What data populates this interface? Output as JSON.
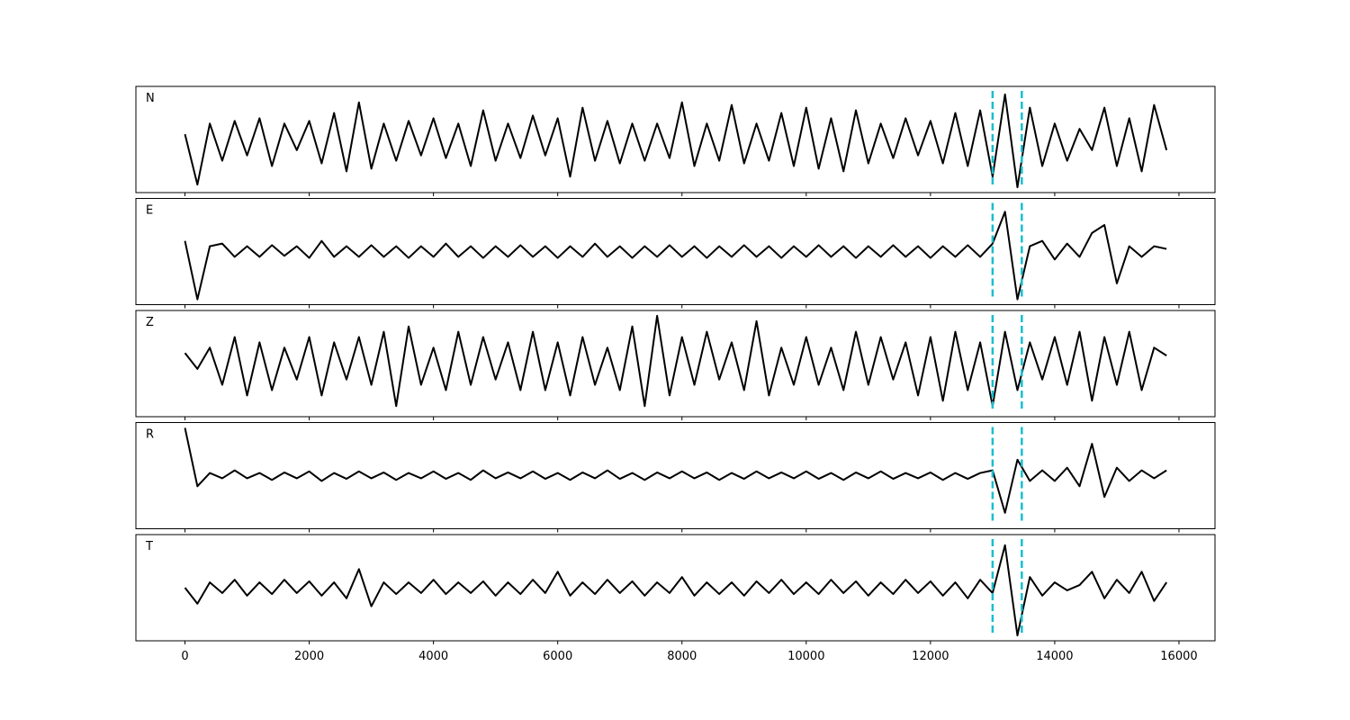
{
  "chart_data": {
    "type": "line",
    "layout": "stacked",
    "x": [
      0,
      200,
      400,
      600,
      800,
      1000,
      1200,
      1400,
      1600,
      1800,
      2000,
      2200,
      2400,
      2600,
      2800,
      3000,
      3200,
      3400,
      3600,
      3800,
      4000,
      4200,
      4400,
      4600,
      4800,
      5000,
      5200,
      5400,
      5600,
      5800,
      6000,
      6200,
      6400,
      6600,
      6800,
      7000,
      7200,
      7400,
      7600,
      7800,
      8000,
      8200,
      8400,
      8600,
      8800,
      9000,
      9200,
      9400,
      9600,
      9800,
      10000,
      10200,
      10400,
      10600,
      10800,
      11000,
      11200,
      11400,
      11600,
      11800,
      12000,
      12200,
      12400,
      12600,
      12800,
      13000,
      13200,
      13400,
      13600,
      13800,
      14000,
      14200,
      14400,
      14600,
      14800,
      15000,
      15200,
      15400,
      15600,
      15800
    ],
    "xlim": [
      -790,
      16580
    ],
    "xticks": [
      0,
      2000,
      4000,
      6000,
      8000,
      10000,
      12000,
      14000,
      16000
    ],
    "ylim": [
      -1,
      1
    ],
    "vlines": [
      13000,
      13470
    ],
    "vline_color": "#17becf",
    "series": [
      {
        "name": "N",
        "color": "#000000",
        "values": [
          0.1,
          -0.85,
          0.3,
          -0.4,
          0.35,
          -0.3,
          0.4,
          -0.5,
          0.3,
          -0.2,
          0.35,
          -0.45,
          0.5,
          -0.6,
          0.7,
          -0.55,
          0.3,
          -0.4,
          0.35,
          -0.3,
          0.4,
          -0.35,
          0.3,
          -0.5,
          0.55,
          -0.4,
          0.3,
          -0.35,
          0.45,
          -0.3,
          0.4,
          -0.7,
          0.6,
          -0.4,
          0.35,
          -0.45,
          0.3,
          -0.4,
          0.3,
          -0.35,
          0.7,
          -0.5,
          0.3,
          -0.4,
          0.65,
          -0.45,
          0.3,
          -0.4,
          0.5,
          -0.5,
          0.6,
          -0.55,
          0.4,
          -0.6,
          0.55,
          -0.45,
          0.3,
          -0.35,
          0.4,
          -0.3,
          0.35,
          -0.45,
          0.5,
          -0.5,
          0.55,
          -0.7,
          0.85,
          -0.9,
          0.6,
          -0.5,
          0.3,
          -0.4,
          0.2,
          -0.2,
          0.6,
          -0.5,
          0.4,
          -0.6,
          0.65,
          -0.2
        ]
      },
      {
        "name": "E",
        "color": "#000000",
        "values": [
          0.2,
          -0.9,
          0.1,
          0.15,
          -0.1,
          0.1,
          -0.1,
          0.12,
          -0.08,
          0.1,
          -0.12,
          0.2,
          -0.1,
          0.1,
          -0.1,
          0.12,
          -0.1,
          0.1,
          -0.12,
          0.1,
          -0.1,
          0.15,
          -0.1,
          0.1,
          -0.12,
          0.1,
          -0.1,
          0.12,
          -0.1,
          0.1,
          -0.12,
          0.1,
          -0.1,
          0.15,
          -0.1,
          0.1,
          -0.12,
          0.1,
          -0.1,
          0.12,
          -0.1,
          0.1,
          -0.12,
          0.1,
          -0.1,
          0.12,
          -0.1,
          0.1,
          -0.12,
          0.1,
          -0.1,
          0.12,
          -0.1,
          0.1,
          -0.12,
          0.1,
          -0.1,
          0.12,
          -0.1,
          0.1,
          -0.12,
          0.1,
          -0.1,
          0.12,
          -0.1,
          0.15,
          0.75,
          -0.9,
          0.1,
          0.2,
          -0.15,
          0.15,
          -0.1,
          0.35,
          0.5,
          -0.6,
          0.1,
          -0.1,
          0.1,
          0.05
        ]
      },
      {
        "name": "Z",
        "color": "#000000",
        "values": [
          0.2,
          -0.1,
          0.3,
          -0.4,
          0.5,
          -0.6,
          0.4,
          -0.5,
          0.3,
          -0.3,
          0.5,
          -0.6,
          0.4,
          -0.3,
          0.5,
          -0.4,
          0.6,
          -0.8,
          0.7,
          -0.4,
          0.3,
          -0.5,
          0.6,
          -0.4,
          0.5,
          -0.3,
          0.4,
          -0.5,
          0.6,
          -0.5,
          0.4,
          -0.6,
          0.5,
          -0.4,
          0.3,
          -0.5,
          0.7,
          -0.8,
          0.9,
          -0.6,
          0.5,
          -0.4,
          0.6,
          -0.3,
          0.4,
          -0.5,
          0.8,
          -0.6,
          0.3,
          -0.4,
          0.5,
          -0.4,
          0.3,
          -0.5,
          0.6,
          -0.4,
          0.5,
          -0.3,
          0.4,
          -0.6,
          0.5,
          -0.7,
          0.6,
          -0.5,
          0.4,
          -0.8,
          0.6,
          -0.5,
          0.4,
          -0.3,
          0.5,
          -0.4,
          0.6,
          -0.7,
          0.5,
          -0.4,
          0.6,
          -0.5,
          0.3,
          0.15
        ]
      },
      {
        "name": "R",
        "color": "#000000",
        "values": [
          0.9,
          -0.2,
          0.05,
          -0.05,
          0.1,
          -0.05,
          0.05,
          -0.08,
          0.06,
          -0.05,
          0.08,
          -0.1,
          0.05,
          -0.06,
          0.08,
          -0.05,
          0.06,
          -0.08,
          0.05,
          -0.05,
          0.08,
          -0.06,
          0.05,
          -0.08,
          0.1,
          -0.05,
          0.06,
          -0.05,
          0.08,
          -0.06,
          0.05,
          -0.08,
          0.06,
          -0.05,
          0.1,
          -0.06,
          0.05,
          -0.08,
          0.06,
          -0.05,
          0.08,
          -0.05,
          0.06,
          -0.08,
          0.05,
          -0.06,
          0.08,
          -0.05,
          0.06,
          -0.05,
          0.08,
          -0.06,
          0.05,
          -0.08,
          0.06,
          -0.05,
          0.08,
          -0.06,
          0.05,
          -0.05,
          0.06,
          -0.08,
          0.05,
          -0.06,
          0.05,
          0.1,
          -0.7,
          0.3,
          -0.1,
          0.1,
          -0.1,
          0.15,
          -0.2,
          0.6,
          -0.4,
          0.15,
          -0.1,
          0.1,
          -0.05,
          0.1
        ]
      },
      {
        "name": "T",
        "color": "#000000",
        "values": [
          0,
          -0.3,
          0.1,
          -0.1,
          0.15,
          -0.15,
          0.1,
          -0.12,
          0.15,
          -0.1,
          0.12,
          -0.15,
          0.1,
          -0.2,
          0.35,
          -0.35,
          0.1,
          -0.12,
          0.1,
          -0.1,
          0.15,
          -0.12,
          0.1,
          -0.1,
          0.12,
          -0.15,
          0.1,
          -0.12,
          0.15,
          -0.1,
          0.3,
          -0.15,
          0.1,
          -0.12,
          0.15,
          -0.1,
          0.12,
          -0.15,
          0.1,
          -0.1,
          0.2,
          -0.15,
          0.1,
          -0.12,
          0.1,
          -0.15,
          0.12,
          -0.1,
          0.15,
          -0.12,
          0.1,
          -0.12,
          0.15,
          -0.1,
          0.12,
          -0.15,
          0.1,
          -0.12,
          0.15,
          -0.1,
          0.12,
          -0.15,
          0.1,
          -0.2,
          0.15,
          -0.1,
          0.8,
          -0.9,
          0.2,
          -0.15,
          0.1,
          -0.05,
          0.05,
          0.3,
          -0.2,
          0.15,
          -0.1,
          0.3,
          -0.25,
          0.1
        ]
      }
    ]
  }
}
